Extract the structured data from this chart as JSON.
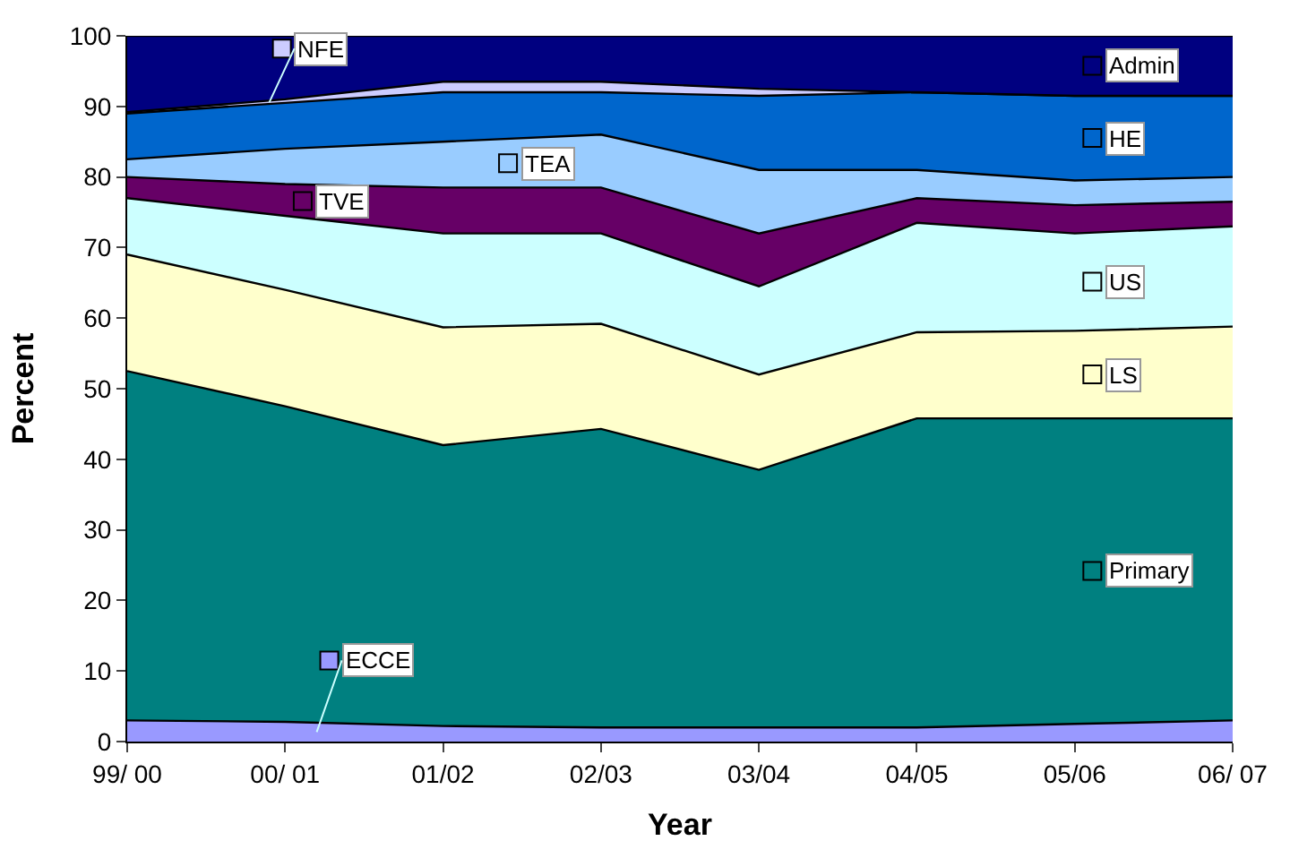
{
  "chart_data": {
    "type": "area",
    "stacked": true,
    "xlabel": "Year",
    "ylabel": "Percent",
    "categories": [
      "99/ 00",
      "00/ 01",
      "01/02",
      "02/03",
      "03/04",
      "04/05",
      "05/06",
      "06/ 07"
    ],
    "ylim": [
      0,
      100
    ],
    "yticks": [
      0,
      10,
      20,
      30,
      40,
      50,
      60,
      70,
      80,
      90,
      100
    ],
    "legend": "right",
    "series": [
      {
        "name": "ECCE",
        "color": "#9999ff",
        "values": [
          3,
          2.8,
          2.2,
          2,
          2,
          2,
          2.5,
          3
        ]
      },
      {
        "name": "Primary",
        "color": "#008080",
        "values": [
          49.5,
          44.7,
          39.8,
          42.3,
          36.5,
          43.8,
          43.3,
          42.8
        ]
      },
      {
        "name": "LS",
        "color": "#ffffcc",
        "values": [
          16.5,
          16.5,
          16.7,
          14.9,
          13.5,
          12.2,
          12.4,
          13
        ]
      },
      {
        "name": "US",
        "color": "#ccffff",
        "values": [
          8,
          10.5,
          13.3,
          12.8,
          12.5,
          15.5,
          13.8,
          14.2
        ]
      },
      {
        "name": "TVE",
        "color": "#660066",
        "values": [
          3,
          4.5,
          6.5,
          6.5,
          7.5,
          3.5,
          4,
          3.5
        ]
      },
      {
        "name": "TEA",
        "color": "#99ccff",
        "values": [
          2.5,
          5,
          6.5,
          7.5,
          9,
          4,
          3.5,
          3.5
        ]
      },
      {
        "name": "HE",
        "color": "#0066cc",
        "values": [
          6.5,
          6.5,
          7,
          6,
          10.5,
          11,
          12,
          11.5
        ]
      },
      {
        "name": "NFE",
        "color": "#ccccff",
        "values": [
          0.2,
          0.5,
          1.5,
          1.5,
          1,
          0,
          0,
          0
        ]
      },
      {
        "name": "Admin",
        "color": "#000080",
        "values": [
          10.8,
          9,
          6.5,
          6.5,
          7.5,
          8,
          8.5,
          8.5
        ]
      }
    ]
  }
}
